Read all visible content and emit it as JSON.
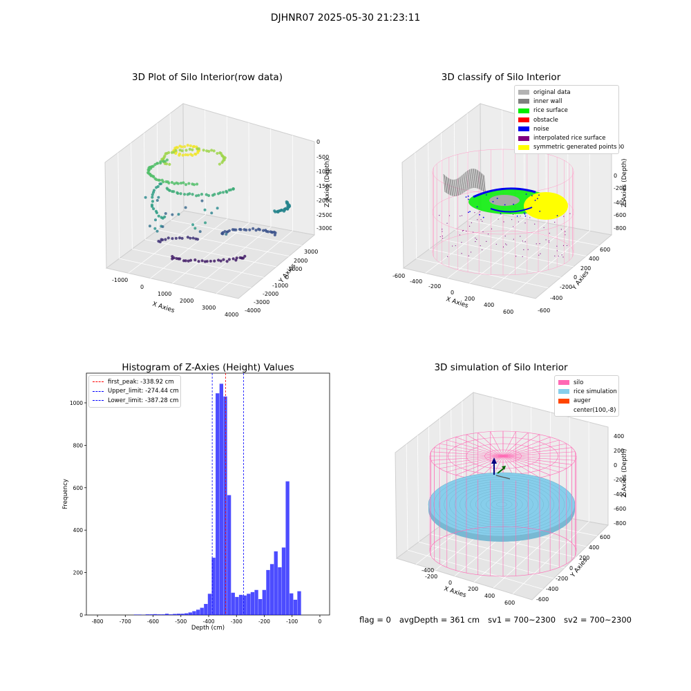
{
  "suptitle": "DJHNR07 2025-05-30 21:23:11",
  "panels": {
    "raw": {
      "title": "3D Plot of Silo Interior(row data)",
      "xlabel": "X Axies",
      "ylabel": "Y Axies",
      "zlabel": "Z Axies (Depth)",
      "xticks": [
        "-1000",
        "0",
        "1000",
        "2000",
        "3000",
        "4000"
      ],
      "yticks": [
        "3000",
        "2000",
        "1000",
        "0",
        "-1000",
        "-2000",
        "-3000",
        "-4000"
      ],
      "zticks": [
        "0",
        "-500",
        "-1000",
        "-1500",
        "-2000",
        "-2500",
        "-3000"
      ]
    },
    "classify": {
      "title": "3D classify of Silo Interior",
      "xlabel": "X Axies",
      "ylabel": "Y Axies",
      "zlabel": "Z Axies (Depth)",
      "xticks": [
        "-600",
        "-400",
        "-200",
        "0",
        "200",
        "400",
        "600"
      ],
      "yticks": [
        "600",
        "400",
        "200",
        "0",
        "-200",
        "-400",
        "-600"
      ],
      "zticks": [
        "200",
        "0",
        "-200",
        "-400",
        "-600",
        "-800"
      ],
      "legend": [
        {
          "label": "original data",
          "color": "#b3b3b3"
        },
        {
          "label": "inner wall",
          "color": "#808080"
        },
        {
          "label": "rice surface",
          "color": "#00ee00"
        },
        {
          "label": "obstacle",
          "color": "#ff0000"
        },
        {
          "label": "noise",
          "color": "#0000ee"
        },
        {
          "label": "interpolated rice surface",
          "color": "#800080"
        },
        {
          "label": "symmetric generated points",
          "color": "#ffff00"
        }
      ]
    },
    "simulation": {
      "title": "3D simulation of Silo Interior",
      "xlabel": "X Axies",
      "ylabel": "Y Axies",
      "zlabel": "Z Axies (Depth)",
      "xticks": [
        "-400",
        "-200",
        "0",
        "200",
        "400",
        "600"
      ],
      "yticks": [
        "600",
        "400",
        "200",
        "0",
        "-200",
        "-400",
        "-600"
      ],
      "zticks": [
        "400",
        "200",
        "0",
        "-200",
        "-400",
        "-600",
        "-800"
      ],
      "legend": [
        {
          "label": "silo",
          "color": "#ff69b4"
        },
        {
          "label": "rice simulation",
          "color": "#87ceeb"
        },
        {
          "label": "auger",
          "color": "#ff4500"
        },
        {
          "label": "center(100,-8)",
          "color": ""
        }
      ]
    }
  },
  "chart_data": {
    "type": "bar",
    "title": "Histogram of Z-Axies (Height) Values",
    "xlabel": "Depth (cm)",
    "ylabel": "Frequency",
    "xlim": [
      -840,
      35
    ],
    "ylim": [
      0,
      1140
    ],
    "xticks": [
      -800,
      -700,
      -600,
      -500,
      -400,
      -300,
      -200,
      -100,
      0
    ],
    "yticks": [
      0,
      200,
      400,
      600,
      800,
      1000
    ],
    "bin_width": 14,
    "bins": [
      {
        "x": -662,
        "y": 2
      },
      {
        "x": -648,
        "y": 2
      },
      {
        "x": -634,
        "y": 1
      },
      {
        "x": -620,
        "y": 3
      },
      {
        "x": -606,
        "y": 3
      },
      {
        "x": -592,
        "y": 4
      },
      {
        "x": -578,
        "y": 3
      },
      {
        "x": -564,
        "y": 3
      },
      {
        "x": -550,
        "y": 6
      },
      {
        "x": -536,
        "y": 3
      },
      {
        "x": -522,
        "y": 5
      },
      {
        "x": -508,
        "y": 6
      },
      {
        "x": -494,
        "y": 6
      },
      {
        "x": -480,
        "y": 8
      },
      {
        "x": -466,
        "y": 12
      },
      {
        "x": -452,
        "y": 18
      },
      {
        "x": -438,
        "y": 25
      },
      {
        "x": -424,
        "y": 34
      },
      {
        "x": -410,
        "y": 52
      },
      {
        "x": -396,
        "y": 100
      },
      {
        "x": -382,
        "y": 270
      },
      {
        "x": -368,
        "y": 1045
      },
      {
        "x": -354,
        "y": 1090
      },
      {
        "x": -340,
        "y": 1030
      },
      {
        "x": -326,
        "y": 565
      },
      {
        "x": -312,
        "y": 105
      },
      {
        "x": -298,
        "y": 85
      },
      {
        "x": -284,
        "y": 95
      },
      {
        "x": -270,
        "y": 92
      },
      {
        "x": -256,
        "y": 100
      },
      {
        "x": -242,
        "y": 108
      },
      {
        "x": -228,
        "y": 118
      },
      {
        "x": -214,
        "y": 75
      },
      {
        "x": -200,
        "y": 118
      },
      {
        "x": -186,
        "y": 212
      },
      {
        "x": -172,
        "y": 240
      },
      {
        "x": -158,
        "y": 300
      },
      {
        "x": -144,
        "y": 225
      },
      {
        "x": -130,
        "y": 318
      },
      {
        "x": -116,
        "y": 630
      },
      {
        "x": -102,
        "y": 102
      },
      {
        "x": -88,
        "y": 72
      },
      {
        "x": -74,
        "y": 112
      }
    ],
    "bar_color": "#0000ff",
    "vlines": [
      {
        "label": "first_peak: -338.92 cm",
        "x": -338.92,
        "color": "#ff0000"
      },
      {
        "label": "Upper_limit: -274.44 cm",
        "x": -274.44,
        "color": "#0000ff"
      },
      {
        "label": "Lower_limit: -387.28 cm",
        "x": -387.28,
        "color": "#0000ff"
      }
    ],
    "legend_position": "upper-left"
  },
  "footer": {
    "flag": "flag = 0",
    "avg_depth": "avgDepth = 361 cm",
    "sv1": "sv1 = 700~2300",
    "sv2": "sv2 = 700~2300"
  }
}
